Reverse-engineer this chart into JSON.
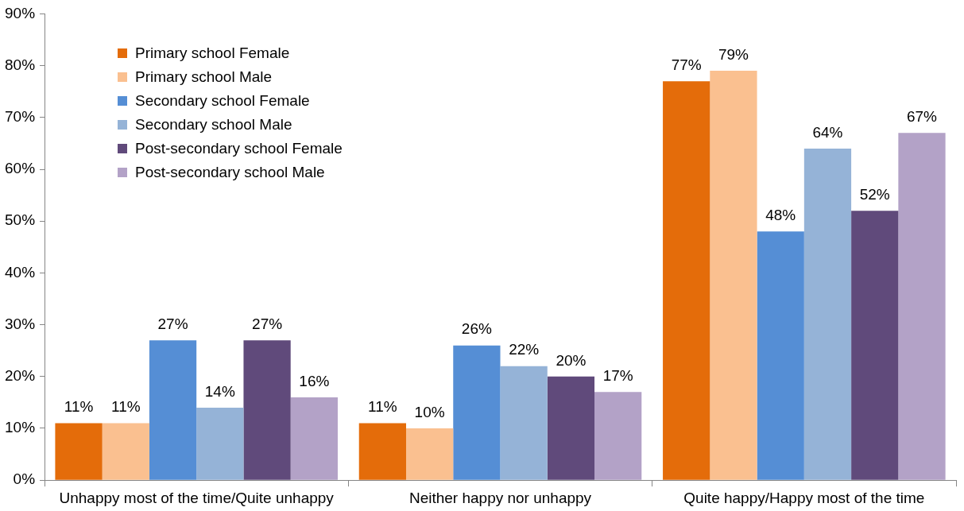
{
  "chart_data": {
    "type": "bar",
    "categories": [
      "Unhappy most of the time/Quite unhappy",
      "Neither happy nor unhappy",
      "Quite happy/Happy most of the time"
    ],
    "series": [
      {
        "name": "Primary school Female",
        "color": "#e46c0a",
        "values": [
          11,
          11,
          77
        ],
        "value_labels": [
          "11%",
          "11%",
          "77%"
        ]
      },
      {
        "name": "Primary school Male",
        "color": "#fac090",
        "values": [
          11,
          10,
          79
        ],
        "value_labels": [
          "11%",
          "10%",
          "79%"
        ]
      },
      {
        "name": "Secondary school Female",
        "color": "#558ed5",
        "values": [
          27,
          26,
          48
        ],
        "value_labels": [
          "27%",
          "26%",
          "48%"
        ]
      },
      {
        "name": "Secondary school Male",
        "color": "#95b3d7",
        "values": [
          14,
          22,
          64
        ],
        "value_labels": [
          "14%",
          "22%",
          "64%"
        ]
      },
      {
        "name": "Post-secondary school Female",
        "color": "#604a7b",
        "values": [
          27,
          20,
          52
        ],
        "value_labels": [
          "27%",
          "20%",
          "52%"
        ]
      },
      {
        "name": "Post-secondary school Male",
        "color": "#b3a2c7",
        "values": [
          16,
          17,
          67
        ],
        "value_labels": [
          "16%",
          "17%",
          "67%"
        ]
      }
    ],
    "ylim": [
      0,
      90
    ],
    "yticks": [
      {
        "value": 0,
        "label": "0%"
      },
      {
        "value": 10,
        "label": "10%"
      },
      {
        "value": 20,
        "label": "20%"
      },
      {
        "value": 30,
        "label": "30%"
      },
      {
        "value": 40,
        "label": "40%"
      },
      {
        "value": 50,
        "label": "50%"
      },
      {
        "value": 60,
        "label": "60%"
      },
      {
        "value": 70,
        "label": "70%"
      },
      {
        "value": 80,
        "label": "80%"
      },
      {
        "value": 90,
        "label": "90%"
      }
    ],
    "grid": false,
    "legend": "top left"
  }
}
